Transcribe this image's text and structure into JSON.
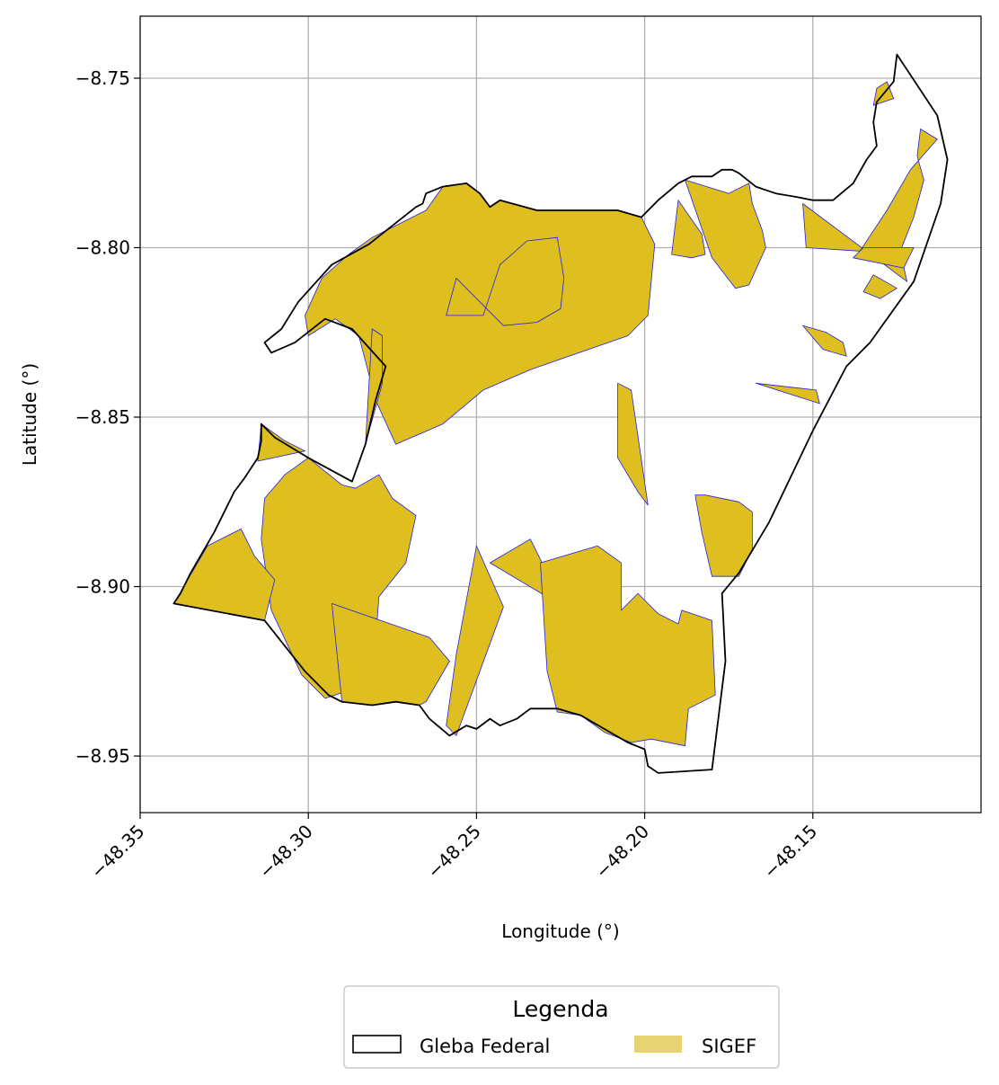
{
  "chart_data": {
    "type": "map",
    "xlabel": "Longitude (°)",
    "ylabel": "Latitude (°)",
    "xlim": [
      -48.35,
      -48.1
    ],
    "ylim": [
      -8.9667,
      -8.7317
    ],
    "x_ticks": [
      {
        "value": -48.35,
        "label": "−48.35"
      },
      {
        "value": -48.3,
        "label": "−48.30"
      },
      {
        "value": -48.25,
        "label": "−48.25"
      },
      {
        "value": -48.2,
        "label": "−48.20"
      },
      {
        "value": -48.15,
        "label": "−48.15"
      }
    ],
    "y_ticks": [
      {
        "value": -8.75,
        "label": "−8.75"
      },
      {
        "value": -8.8,
        "label": "−8.80"
      },
      {
        "value": -8.85,
        "label": "−8.85"
      },
      {
        "value": -8.9,
        "label": "−8.90"
      },
      {
        "value": -8.95,
        "label": "−8.95"
      }
    ],
    "grid": true,
    "legend": {
      "title": "Legenda",
      "placement": "bottom-center",
      "entries": [
        {
          "label": "Gleba Federal",
          "style": "outline",
          "edge_color": "#000000",
          "fill_color": "#ffffff"
        },
        {
          "label": "SIGEF",
          "style": "fill",
          "fill_color": "#e8d372"
        }
      ]
    },
    "layers": {
      "gleba_federal": {
        "name": "Gleba Federal",
        "edge_color": "#000000",
        "fill_color": "none",
        "boundary": [
          [
            -48.125,
            -8.743
          ],
          [
            -48.113,
            -8.761
          ],
          [
            -48.11,
            -8.774
          ],
          [
            -48.112,
            -8.787
          ],
          [
            -48.12,
            -8.81
          ],
          [
            -48.133,
            -8.828
          ],
          [
            -48.14,
            -8.835
          ],
          [
            -48.15,
            -8.854
          ],
          [
            -48.163,
            -8.881
          ],
          [
            -48.172,
            -8.896
          ],
          [
            -48.177,
            -8.902
          ],
          [
            -48.176,
            -8.922
          ],
          [
            -48.178,
            -8.938
          ],
          [
            -48.18,
            -8.954
          ],
          [
            -48.196,
            -8.955
          ],
          [
            -48.199,
            -8.953
          ],
          [
            -48.2,
            -8.948
          ],
          [
            -48.205,
            -8.946
          ],
          [
            -48.212,
            -8.942
          ],
          [
            -48.219,
            -8.938
          ],
          [
            -48.226,
            -8.936
          ],
          [
            -48.234,
            -8.936
          ],
          [
            -48.238,
            -8.939
          ],
          [
            -48.243,
            -8.941
          ],
          [
            -48.246,
            -8.939
          ],
          [
            -48.25,
            -8.942
          ],
          [
            -48.253,
            -8.941
          ],
          [
            -48.258,
            -8.944
          ],
          [
            -48.264,
            -8.939
          ],
          [
            -48.267,
            -8.935
          ],
          [
            -48.274,
            -8.934
          ],
          [
            -48.281,
            -8.935
          ],
          [
            -48.29,
            -8.934
          ],
          [
            -48.294,
            -8.932
          ],
          [
            -48.301,
            -8.925
          ],
          [
            -48.313,
            -8.91
          ],
          [
            -48.34,
            -8.905
          ],
          [
            -48.338,
            -8.902
          ],
          [
            -48.335,
            -8.896
          ],
          [
            -48.328,
            -8.884
          ],
          [
            -48.322,
            -8.872
          ],
          [
            -48.319,
            -8.868
          ],
          [
            -48.315,
            -8.862
          ],
          [
            -48.314,
            -8.857
          ],
          [
            -48.314,
            -8.852
          ],
          [
            -48.31,
            -8.856
          ],
          [
            -48.3,
            -8.862
          ],
          [
            -48.287,
            -8.869
          ],
          [
            -48.283,
            -8.858
          ],
          [
            -48.28,
            -8.845
          ],
          [
            -48.277,
            -8.835
          ],
          [
            -48.287,
            -8.824
          ],
          [
            -48.295,
            -8.821
          ],
          [
            -48.304,
            -8.828
          ],
          [
            -48.311,
            -8.831
          ],
          [
            -48.313,
            -8.828
          ],
          [
            -48.308,
            -8.824
          ],
          [
            -48.303,
            -8.816
          ],
          [
            -48.293,
            -8.805
          ],
          [
            -48.282,
            -8.799
          ],
          [
            -48.268,
            -8.788
          ],
          [
            -48.266,
            -8.787
          ],
          [
            -48.265,
            -8.784
          ],
          [
            -48.26,
            -8.782
          ],
          [
            -48.253,
            -8.781
          ],
          [
            -48.249,
            -8.784
          ],
          [
            -48.246,
            -8.788
          ],
          [
            -48.243,
            -8.786
          ],
          [
            -48.232,
            -8.789
          ],
          [
            -48.219,
            -8.789
          ],
          [
            -48.208,
            -8.789
          ],
          [
            -48.201,
            -8.791
          ],
          [
            -48.196,
            -8.786
          ],
          [
            -48.19,
            -8.781
          ],
          [
            -48.186,
            -8.779
          ],
          [
            -48.18,
            -8.779
          ],
          [
            -48.177,
            -8.777
          ],
          [
            -48.174,
            -8.777
          ],
          [
            -48.172,
            -8.778
          ],
          [
            -48.167,
            -8.782
          ],
          [
            -48.161,
            -8.784
          ],
          [
            -48.155,
            -8.785
          ],
          [
            -48.15,
            -8.786
          ],
          [
            -48.144,
            -8.786
          ],
          [
            -48.138,
            -8.781
          ],
          [
            -48.134,
            -8.774
          ],
          [
            -48.131,
            -8.77
          ],
          [
            -48.132,
            -8.763
          ],
          [
            -48.131,
            -8.757
          ],
          [
            -48.126,
            -8.751
          ],
          [
            -48.125,
            -8.743
          ]
        ]
      },
      "sigef": {
        "name": "SIGEF",
        "fill_color": "#dfbe20",
        "edge_color": "#2222dd",
        "parcels": [
          [
            [
              -48.281,
              -8.797
            ],
            [
              -48.265,
              -8.789
            ],
            [
              -48.26,
              -8.782
            ],
            [
              -48.253,
              -8.781
            ],
            [
              -48.249,
              -8.784
            ],
            [
              -48.246,
              -8.788
            ],
            [
              -48.243,
              -8.786
            ],
            [
              -48.232,
              -8.789
            ],
            [
              -48.219,
              -8.789
            ],
            [
              -48.208,
              -8.789
            ],
            [
              -48.201,
              -8.791
            ],
            [
              -48.197,
              -8.799
            ],
            [
              -48.199,
              -8.82
            ],
            [
              -48.205,
              -8.826
            ],
            [
              -48.234,
              -8.836
            ],
            [
              -48.248,
              -8.842
            ],
            [
              -48.26,
              -8.852
            ],
            [
              -48.274,
              -8.858
            ],
            [
              -48.28,
              -8.845
            ],
            [
              -48.285,
              -8.826
            ],
            [
              -48.292,
              -8.821
            ],
            [
              -48.3,
              -8.826
            ],
            [
              -48.301,
              -8.82
            ],
            [
              -48.296,
              -8.809
            ],
            [
              -48.288,
              -8.802
            ]
          ],
          [
            [
              -48.256,
              -8.809
            ],
            [
              -48.259,
              -8.82
            ],
            [
              -48.248,
              -8.82
            ],
            [
              -48.243,
              -8.805
            ],
            [
              -48.235,
              -8.798
            ],
            [
              -48.226,
              -8.797
            ],
            [
              -48.224,
              -8.809
            ],
            [
              -48.225,
              -8.818
            ],
            [
              -48.232,
              -8.822
            ],
            [
              -48.242,
              -8.823
            ]
          ],
          [
            [
              -48.283,
              -8.858
            ],
            [
              -48.278,
              -8.84
            ],
            [
              -48.278,
              -8.826
            ],
            [
              -48.281,
              -8.824
            ]
          ],
          [
            [
              -48.3,
              -8.862
            ],
            [
              -48.29,
              -8.87
            ],
            [
              -48.286,
              -8.871
            ],
            [
              -48.279,
              -8.867
            ],
            [
              -48.275,
              -8.874
            ],
            [
              -48.268,
              -8.879
            ],
            [
              -48.271,
              -8.893
            ],
            [
              -48.279,
              -8.903
            ],
            [
              -48.28,
              -8.916
            ],
            [
              -48.289,
              -8.931
            ],
            [
              -48.295,
              -8.933
            ],
            [
              -48.302,
              -8.926
            ],
            [
              -48.311,
              -8.907
            ],
            [
              -48.314,
              -8.886
            ],
            [
              -48.313,
              -8.874
            ],
            [
              -48.307,
              -8.867
            ]
          ],
          [
            [
              -48.32,
              -8.883
            ],
            [
              -48.33,
              -8.888
            ],
            [
              -48.34,
              -8.905
            ],
            [
              -48.313,
              -8.91
            ],
            [
              -48.31,
              -8.898
            ],
            [
              -48.316,
              -8.891
            ]
          ],
          [
            [
              -48.314,
              -8.852
            ],
            [
              -48.307,
              -8.857
            ],
            [
              -48.301,
              -8.86
            ],
            [
              -48.315,
              -8.863
            ]
          ],
          [
            [
              -48.293,
              -8.905
            ],
            [
              -48.264,
              -8.915
            ],
            [
              -48.258,
              -8.922
            ],
            [
              -48.265,
              -8.934
            ],
            [
              -48.267,
              -8.935
            ],
            [
              -48.274,
              -8.934
            ],
            [
              -48.281,
              -8.935
            ],
            [
              -48.29,
              -8.934
            ]
          ],
          [
            [
              -48.25,
              -8.888
            ],
            [
              -48.242,
              -8.906
            ],
            [
              -48.256,
              -8.944
            ],
            [
              -48.259,
              -8.941
            ],
            [
              -48.256,
              -8.92
            ]
          ],
          [
            [
              -48.246,
              -8.893
            ],
            [
              -48.234,
              -8.886
            ],
            [
              -48.228,
              -8.898
            ],
            [
              -48.224,
              -8.906
            ]
          ],
          [
            [
              -48.231,
              -8.893
            ],
            [
              -48.214,
              -8.888
            ],
            [
              -48.207,
              -8.893
            ],
            [
              -48.207,
              -8.907
            ],
            [
              -48.202,
              -8.902
            ],
            [
              -48.199,
              -8.905
            ],
            [
              -48.196,
              -8.908
            ],
            [
              -48.19,
              -8.911
            ],
            [
              -48.189,
              -8.907
            ],
            [
              -48.18,
              -8.91
            ],
            [
              -48.179,
              -8.932
            ],
            [
              -48.187,
              -8.936
            ],
            [
              -48.188,
              -8.947
            ],
            [
              -48.198,
              -8.945
            ],
            [
              -48.204,
              -8.946
            ],
            [
              -48.212,
              -8.943
            ],
            [
              -48.219,
              -8.938
            ],
            [
              -48.226,
              -8.937
            ],
            [
              -48.229,
              -8.925
            ]
          ],
          [
            [
              -48.208,
              -8.84
            ],
            [
              -48.204,
              -8.842
            ],
            [
              -48.199,
              -8.876
            ],
            [
              -48.202,
              -8.872
            ],
            [
              -48.208,
              -8.862
            ]
          ],
          [
            [
              -48.185,
              -8.873
            ],
            [
              -48.183,
              -8.884
            ],
            [
              -48.18,
              -8.897
            ],
            [
              -48.172,
              -8.897
            ],
            [
              -48.168,
              -8.889
            ],
            [
              -48.168,
              -8.878
            ],
            [
              -48.172,
              -8.875
            ],
            [
              -48.182,
              -8.873
            ]
          ],
          [
            [
              -48.149,
              -8.842
            ],
            [
              -48.167,
              -8.84
            ],
            [
              -48.148,
              -8.846
            ]
          ],
          [
            [
              -48.153,
              -8.787
            ],
            [
              -48.152,
              -8.8
            ],
            [
              -48.136,
              -8.801
            ],
            [
              -48.128,
              -8.789
            ],
            [
              -48.121,
              -8.777
            ],
            [
              -48.113,
              -8.768
            ],
            [
              -48.118,
              -8.765
            ],
            [
              -48.119,
              -8.773
            ],
            [
              -48.117,
              -8.78
            ],
            [
              -48.12,
              -8.791
            ],
            [
              -48.124,
              -8.801
            ],
            [
              -48.122,
              -8.81
            ]
          ],
          [
            [
              -48.128,
              -8.751
            ],
            [
              -48.126,
              -8.756
            ],
            [
              -48.132,
              -8.758
            ],
            [
              -48.131,
              -8.753
            ]
          ],
          [
            [
              -48.188,
              -8.78
            ],
            [
              -48.175,
              -8.784
            ],
            [
              -48.169,
              -8.781
            ],
            [
              -48.168,
              -8.787
            ],
            [
              -48.165,
              -8.795
            ],
            [
              -48.164,
              -8.8
            ],
            [
              -48.169,
              -8.811
            ],
            [
              -48.173,
              -8.812
            ],
            [
              -48.18,
              -8.803
            ]
          ],
          [
            [
              -48.19,
              -8.786
            ],
            [
              -48.183,
              -8.796
            ],
            [
              -48.182,
              -8.802
            ],
            [
              -48.186,
              -8.803
            ],
            [
              -48.192,
              -8.802
            ]
          ],
          [
            [
              -48.153,
              -8.823
            ],
            [
              -48.146,
              -8.825
            ],
            [
              -48.141,
              -8.828
            ],
            [
              -48.14,
              -8.832
            ],
            [
              -48.147,
              -8.83
            ]
          ],
          [
            [
              -48.135,
              -8.813
            ],
            [
              -48.13,
              -8.815
            ],
            [
              -48.125,
              -8.812
            ],
            [
              -48.132,
              -8.808
            ]
          ],
          [
            [
              -48.138,
              -8.803
            ],
            [
              -48.123,
              -8.806
            ],
            [
              -48.12,
              -8.8
            ],
            [
              -48.135,
              -8.8
            ]
          ]
        ]
      }
    }
  }
}
